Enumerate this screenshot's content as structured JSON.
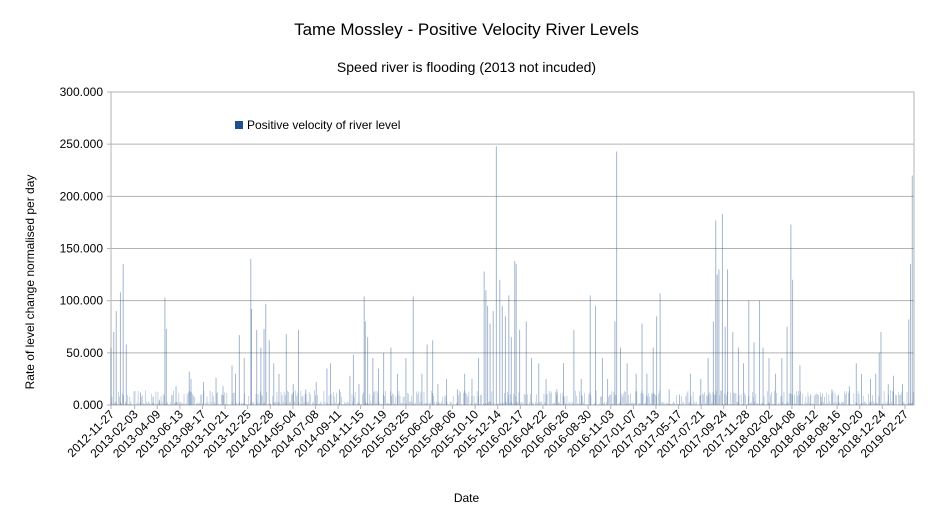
{
  "chart_data": {
    "type": "bar",
    "title": "Tame Mossley - Positive Velocity River Levels",
    "subtitle": "Speed river is flooding (2013 not incuded)",
    "xlabel": "Date",
    "ylabel": "Rate of level change normalised per day",
    "ylim": [
      0,
      300
    ],
    "y_ticks": [
      "0.000",
      "50.000",
      "100.000",
      "150.000",
      "200.000",
      "250.000",
      "300.000"
    ],
    "x_ticks": [
      "2012-11-27",
      "2013-02-03",
      "2013-04-09",
      "2013-06-13",
      "2013-08-17",
      "2013-10-21",
      "2013-12-25",
      "2014-02-28",
      "2014-05-04",
      "2014-07-08",
      "2014-09-11",
      "2014-11-15",
      "2015-01-19",
      "2015-03-25",
      "2015-06-02",
      "2015-08-06",
      "2015-10-10",
      "2015-12-14",
      "2016-02-17",
      "2016-04-22",
      "2016-06-26",
      "2016-08-30",
      "2016-11-03",
      "2017-01-07",
      "2017-03-13",
      "2017-05-17",
      "2017-07-21",
      "2017-09-24",
      "2017-11-28",
      "2018-02-02",
      "2018-04-08",
      "2018-06-12",
      "2018-08-16",
      "2018-10-20",
      "2018-12-24",
      "2019-02-27"
    ],
    "legend": "Positive velocity of river level",
    "legend_position": "top-left",
    "grid": "horizontal",
    "series_color": "#1f4e8c",
    "peaks": [
      {
        "date": "2012-11-27",
        "value": 55
      },
      {
        "date": "2012-12-05",
        "value": 70
      },
      {
        "date": "2012-12-12",
        "value": 90
      },
      {
        "date": "2012-12-24",
        "value": 108
      },
      {
        "date": "2013-01-01",
        "value": 135
      },
      {
        "date": "2013-01-10",
        "value": 58
      },
      {
        "date": "2013-02-20",
        "value": 12
      },
      {
        "date": "2013-03-28",
        "value": 8
      },
      {
        "date": "2013-04-15",
        "value": 5
      },
      {
        "date": "2013-05-01",
        "value": 103
      },
      {
        "date": "2013-05-05",
        "value": 73
      },
      {
        "date": "2013-06-02",
        "value": 18
      },
      {
        "date": "2013-07-10",
        "value": 32
      },
      {
        "date": "2013-07-15",
        "value": 25
      },
      {
        "date": "2013-08-20",
        "value": 22
      },
      {
        "date": "2013-09-25",
        "value": 26
      },
      {
        "date": "2013-10-15",
        "value": 18
      },
      {
        "date": "2013-11-10",
        "value": 38
      },
      {
        "date": "2013-11-20",
        "value": 30
      },
      {
        "date": "2013-12-01",
        "value": 67
      },
      {
        "date": "2013-12-15",
        "value": 45
      },
      {
        "date": "2014-01-03",
        "value": 140
      },
      {
        "date": "2014-01-05",
        "value": 92
      },
      {
        "date": "2014-01-20",
        "value": 72
      },
      {
        "date": "2014-02-01",
        "value": 55
      },
      {
        "date": "2014-02-10",
        "value": 73
      },
      {
        "date": "2014-02-15",
        "value": 97
      },
      {
        "date": "2014-02-25",
        "value": 62
      },
      {
        "date": "2014-03-10",
        "value": 40
      },
      {
        "date": "2014-03-25",
        "value": 30
      },
      {
        "date": "2014-04-15",
        "value": 68
      },
      {
        "date": "2014-05-05",
        "value": 20
      },
      {
        "date": "2014-05-20",
        "value": 72
      },
      {
        "date": "2014-06-10",
        "value": 15
      },
      {
        "date": "2014-07-10",
        "value": 22
      },
      {
        "date": "2014-08-10",
        "value": 35
      },
      {
        "date": "2014-08-20",
        "value": 40
      },
      {
        "date": "2014-09-15",
        "value": 15
      },
      {
        "date": "2014-10-15",
        "value": 28
      },
      {
        "date": "2014-10-25",
        "value": 48
      },
      {
        "date": "2014-11-10",
        "value": 20
      },
      {
        "date": "2014-11-25",
        "value": 104
      },
      {
        "date": "2014-11-28",
        "value": 80
      },
      {
        "date": "2014-12-05",
        "value": 65
      },
      {
        "date": "2014-12-20",
        "value": 45
      },
      {
        "date": "2015-01-05",
        "value": 35
      },
      {
        "date": "2015-01-20",
        "value": 50
      },
      {
        "date": "2015-02-10",
        "value": 55
      },
      {
        "date": "2015-03-01",
        "value": 30
      },
      {
        "date": "2015-03-25",
        "value": 45
      },
      {
        "date": "2015-04-15",
        "value": 104
      },
      {
        "date": "2015-05-10",
        "value": 30
      },
      {
        "date": "2015-05-25",
        "value": 58
      },
      {
        "date": "2015-06-10",
        "value": 62
      },
      {
        "date": "2015-06-25",
        "value": 20
      },
      {
        "date": "2015-07-20",
        "value": 25
      },
      {
        "date": "2015-08-20",
        "value": 15
      },
      {
        "date": "2015-09-10",
        "value": 30
      },
      {
        "date": "2015-10-01",
        "value": 25
      },
      {
        "date": "2015-10-20",
        "value": 45
      },
      {
        "date": "2015-11-05",
        "value": 128
      },
      {
        "date": "2015-11-10",
        "value": 110
      },
      {
        "date": "2015-11-15",
        "value": 95
      },
      {
        "date": "2015-11-22",
        "value": 78
      },
      {
        "date": "2015-12-01",
        "value": 90
      },
      {
        "date": "2015-12-10",
        "value": 248
      },
      {
        "date": "2015-12-20",
        "value": 120
      },
      {
        "date": "2015-12-27",
        "value": 95
      },
      {
        "date": "2016-01-05",
        "value": 85
      },
      {
        "date": "2016-01-15",
        "value": 105
      },
      {
        "date": "2016-01-22",
        "value": 65
      },
      {
        "date": "2016-02-01",
        "value": 138
      },
      {
        "date": "2016-02-05",
        "value": 135
      },
      {
        "date": "2016-02-15",
        "value": 72
      },
      {
        "date": "2016-03-05",
        "value": 80
      },
      {
        "date": "2016-03-20",
        "value": 45
      },
      {
        "date": "2016-04-10",
        "value": 40
      },
      {
        "date": "2016-05-01",
        "value": 25
      },
      {
        "date": "2016-06-01",
        "value": 15
      },
      {
        "date": "2016-06-20",
        "value": 40
      },
      {
        "date": "2016-07-20",
        "value": 72
      },
      {
        "date": "2016-08-10",
        "value": 25
      },
      {
        "date": "2016-09-05",
        "value": 105
      },
      {
        "date": "2016-09-20",
        "value": 95
      },
      {
        "date": "2016-10-10",
        "value": 45
      },
      {
        "date": "2016-10-25",
        "value": 25
      },
      {
        "date": "2016-11-15",
        "value": 80
      },
      {
        "date": "2016-11-20",
        "value": 243
      },
      {
        "date": "2016-12-01",
        "value": 55
      },
      {
        "date": "2016-12-20",
        "value": 40
      },
      {
        "date": "2017-01-15",
        "value": 30
      },
      {
        "date": "2017-02-01",
        "value": 78
      },
      {
        "date": "2017-02-15",
        "value": 30
      },
      {
        "date": "2017-03-05",
        "value": 55
      },
      {
        "date": "2017-03-15",
        "value": 85
      },
      {
        "date": "2017-03-25",
        "value": 107
      },
      {
        "date": "2017-04-20",
        "value": 15
      },
      {
        "date": "2017-05-20",
        "value": 10
      },
      {
        "date": "2017-06-20",
        "value": 30
      },
      {
        "date": "2017-07-20",
        "value": 25
      },
      {
        "date": "2017-08-10",
        "value": 45
      },
      {
        "date": "2017-08-25",
        "value": 80
      },
      {
        "date": "2017-09-01",
        "value": 177
      },
      {
        "date": "2017-09-05",
        "value": 125
      },
      {
        "date": "2017-09-10",
        "value": 130
      },
      {
        "date": "2017-09-20",
        "value": 183
      },
      {
        "date": "2017-09-28",
        "value": 75
      },
      {
        "date": "2017-10-05",
        "value": 130
      },
      {
        "date": "2017-10-20",
        "value": 70
      },
      {
        "date": "2017-11-05",
        "value": 55
      },
      {
        "date": "2017-11-20",
        "value": 40
      },
      {
        "date": "2017-12-05",
        "value": 100
      },
      {
        "date": "2017-12-20",
        "value": 60
      },
      {
        "date": "2018-01-05",
        "value": 100
      },
      {
        "date": "2018-01-15",
        "value": 55
      },
      {
        "date": "2018-02-01",
        "value": 45
      },
      {
        "date": "2018-02-20",
        "value": 30
      },
      {
        "date": "2018-03-10",
        "value": 45
      },
      {
        "date": "2018-03-25",
        "value": 75
      },
      {
        "date": "2018-04-05",
        "value": 173
      },
      {
        "date": "2018-04-10",
        "value": 120
      },
      {
        "date": "2018-05-01",
        "value": 38
      },
      {
        "date": "2018-06-01",
        "value": 10
      },
      {
        "date": "2018-07-01",
        "value": 8
      },
      {
        "date": "2018-08-01",
        "value": 15
      },
      {
        "date": "2018-08-20",
        "value": 10
      },
      {
        "date": "2018-09-20",
        "value": 18
      },
      {
        "date": "2018-10-10",
        "value": 40
      },
      {
        "date": "2018-10-25",
        "value": 30
      },
      {
        "date": "2018-11-20",
        "value": 25
      },
      {
        "date": "2018-12-05",
        "value": 30
      },
      {
        "date": "2018-12-15",
        "value": 50
      },
      {
        "date": "2018-12-20",
        "value": 70
      },
      {
        "date": "2019-01-10",
        "value": 20
      },
      {
        "date": "2019-01-25",
        "value": 28
      },
      {
        "date": "2019-02-20",
        "value": 20
      },
      {
        "date": "2019-03-10",
        "value": 82
      },
      {
        "date": "2019-03-15",
        "value": 135
      },
      {
        "date": "2019-03-20",
        "value": 220
      }
    ]
  }
}
